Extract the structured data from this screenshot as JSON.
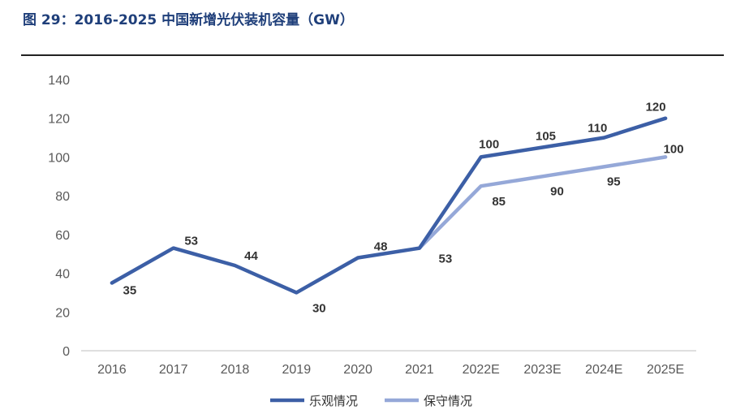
{
  "figure": {
    "title": "图 29：2016-2025 中国新增光伏装机容量（GW）"
  },
  "chart_data": {
    "type": "line",
    "title": "",
    "xlabel": "",
    "ylabel": "",
    "ylim": [
      0,
      140
    ],
    "yticks": [
      "0",
      "20",
      "40",
      "60",
      "80",
      "100",
      "120",
      "140"
    ],
    "categories": [
      "2016",
      "2017",
      "2018",
      "2019",
      "2020",
      "2021",
      "2022E",
      "2023E",
      "2024E",
      "2025E"
    ],
    "legend_position": "bottom-center",
    "grid": false,
    "series": [
      {
        "name": "乐观情况",
        "color": "#3c5fa6",
        "values": [
          35,
          53,
          44,
          30,
          48,
          53,
          100,
          105,
          110,
          120
        ],
        "labels": [
          "35",
          "53",
          "44",
          "30",
          "48",
          "53",
          "100",
          "105",
          "110",
          "120"
        ]
      },
      {
        "name": "保守情况",
        "color": "#95a8d8",
        "values": [
          null,
          null,
          null,
          null,
          null,
          53,
          85,
          90,
          95,
          100
        ],
        "labels": [
          null,
          null,
          null,
          null,
          null,
          null,
          "85",
          "90",
          "95",
          "100"
        ]
      }
    ]
  }
}
